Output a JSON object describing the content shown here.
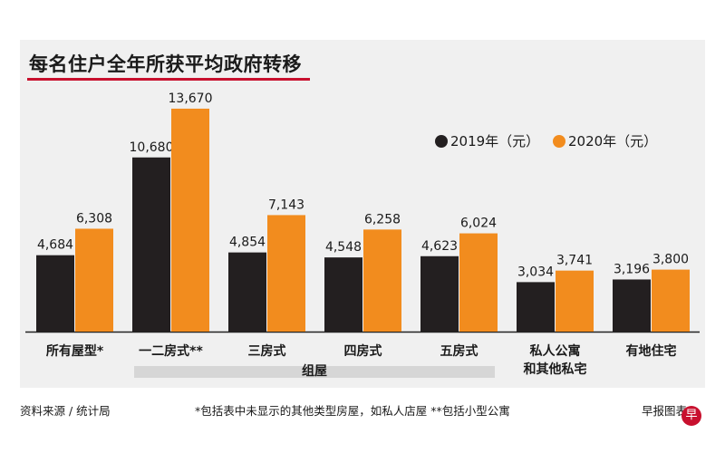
{
  "chart_data": {
    "type": "bar",
    "title": "每名住户全年所获平均政府转移",
    "categories": [
      "所有屋型*",
      "一二房式**",
      "三房式",
      "四房式",
      "五房式",
      "私人公寓\n和其他私宅",
      "有地住宅"
    ],
    "series": [
      {
        "name": "2019年（元）",
        "color": "#231f20",
        "values": [
          4684,
          10680,
          4854,
          4548,
          4623,
          3034,
          3196
        ]
      },
      {
        "name": "2020年（元）",
        "color": "#f28c1e",
        "values": [
          6308,
          13670,
          7143,
          6258,
          6024,
          3741,
          3800
        ]
      }
    ],
    "value_labels": [
      [
        "4,684",
        "10,680",
        "4,854",
        "4,548",
        "4,623",
        "3,034",
        "3,196"
      ],
      [
        "6,308",
        "13,670",
        "7,143",
        "6,258",
        "6,024",
        "3,741",
        "3,800"
      ]
    ],
    "ylim": [
      0,
      14000
    ],
    "grid": false,
    "legend_position": "top-right",
    "group_label": "组屋"
  },
  "footer": {
    "source": "资料来源 / 统计局",
    "note": "*包括表中未显示的其他类型房屋，如私人店屋 **包括小型公寓",
    "credit": "早报图表"
  }
}
